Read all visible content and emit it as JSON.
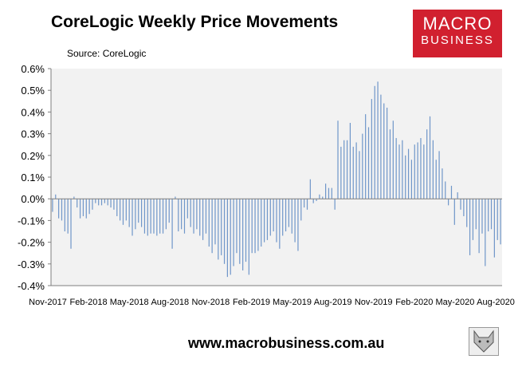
{
  "title": "CoreLogic Weekly Price Movements",
  "source": "Source: CoreLogic",
  "logo": {
    "line1": "MACRO",
    "line2": "BUSINESS"
  },
  "footer": "www.macrobusiness.com.au",
  "colors": {
    "bar": "#6f96c9",
    "axis": "#7f7f7f",
    "plot_bg": "#f2f2f2",
    "logo_bg": "#d1202f"
  },
  "chart_data": {
    "type": "bar",
    "title": "CoreLogic Weekly Price Movements",
    "ylabel": "",
    "xlabel": "",
    "ylim": [
      -0.4,
      0.6
    ],
    "yticks": [
      0.6,
      0.5,
      0.4,
      0.3,
      0.2,
      0.1,
      0.0,
      -0.1,
      -0.2,
      -0.3,
      -0.4
    ],
    "ytick_labels": [
      "0.6%",
      "0.5%",
      "0.4%",
      "0.3%",
      "0.2%",
      "0.1%",
      "0.0%",
      "-0.1%",
      "-0.2%",
      "-0.3%",
      "-0.4%"
    ],
    "xtick_labels": [
      "Nov-2017",
      "Feb-2018",
      "May-2018",
      "Aug-2018",
      "Nov-2018",
      "Feb-2019",
      "May-2019",
      "Aug-2019",
      "Nov-2019",
      "Feb-2020",
      "May-2020",
      "Aug-2020"
    ],
    "grid": false,
    "series": [
      {
        "values": [
          -0.06,
          0.02,
          -0.09,
          -0.1,
          -0.15,
          -0.16,
          -0.23,
          0.01,
          -0.04,
          -0.09,
          -0.08,
          -0.09,
          -0.07,
          -0.05,
          -0.02,
          -0.03,
          -0.03,
          -0.02,
          -0.03,
          -0.04,
          -0.05,
          -0.08,
          -0.1,
          -0.12,
          -0.1,
          -0.13,
          -0.17,
          -0.14,
          -0.11,
          -0.13,
          -0.16,
          -0.17,
          -0.16,
          -0.16,
          -0.17,
          -0.16,
          -0.16,
          -0.14,
          -0.11,
          -0.23,
          0.01,
          -0.15,
          -0.14,
          -0.16,
          -0.09,
          -0.13,
          -0.16,
          -0.14,
          -0.17,
          -0.19,
          -0.16,
          -0.22,
          -0.25,
          -0.21,
          -0.28,
          -0.26,
          -0.3,
          -0.36,
          -0.35,
          -0.31,
          -0.25,
          -0.3,
          -0.33,
          -0.29,
          -0.35,
          -0.25,
          -0.25,
          -0.24,
          -0.22,
          -0.2,
          -0.19,
          -0.17,
          -0.15,
          -0.2,
          -0.23,
          -0.17,
          -0.15,
          -0.13,
          -0.16,
          -0.2,
          -0.24,
          -0.1,
          -0.04,
          -0.05,
          0.09,
          -0.02,
          -0.01,
          0.02,
          0.01,
          0.07,
          0.05,
          0.05,
          -0.05,
          0.36,
          0.24,
          0.27,
          0.27,
          0.35,
          0.24,
          0.26,
          0.22,
          0.3,
          0.39,
          0.33,
          0.46,
          0.52,
          0.54,
          0.48,
          0.44,
          0.42,
          0.32,
          0.36,
          0.28,
          0.25,
          0.27,
          0.2,
          0.23,
          0.18,
          0.25,
          0.26,
          0.28,
          0.25,
          0.32,
          0.38,
          0.27,
          0.18,
          0.22,
          0.14,
          0.08,
          -0.03,
          0.06,
          -0.12,
          0.03,
          -0.05,
          -0.08,
          -0.13,
          -0.26,
          -0.19,
          -0.14,
          -0.25,
          -0.16,
          -0.31,
          -0.15,
          -0.14,
          -0.27,
          -0.19,
          -0.21
        ]
      }
    ]
  }
}
